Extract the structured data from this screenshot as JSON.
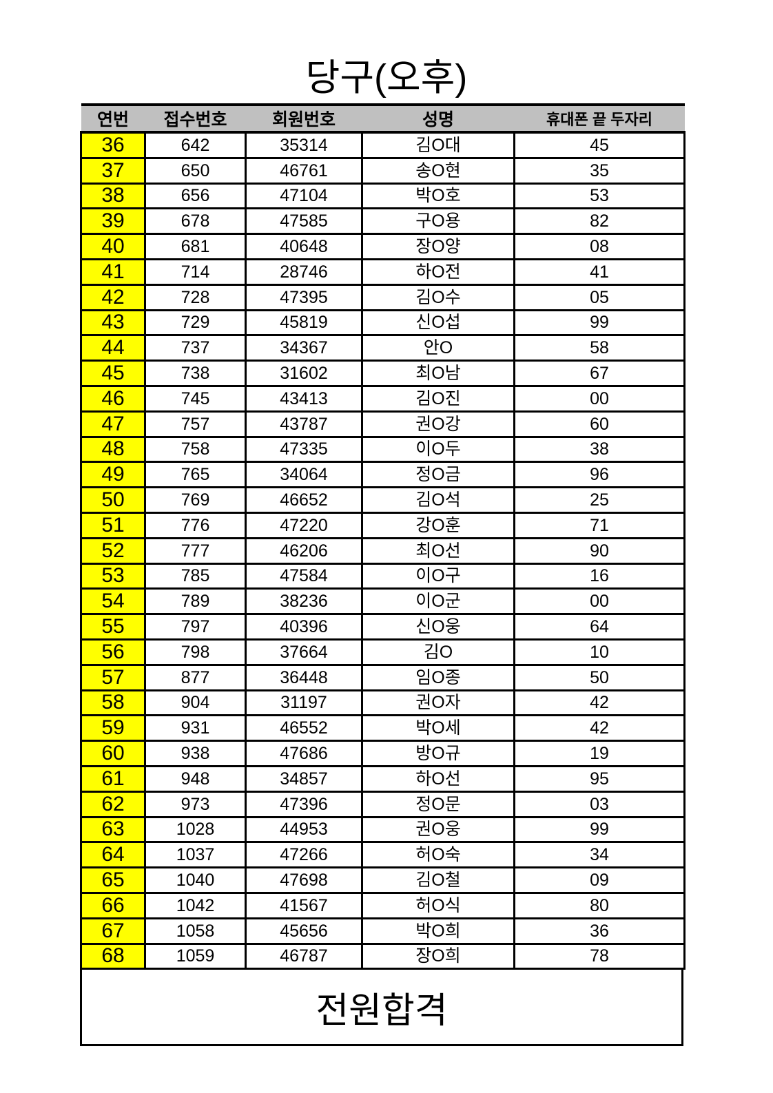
{
  "title": "당구(오후)",
  "columns": [
    "연번",
    "접수번호",
    "회원번호",
    "성명",
    "휴대폰 끝 두자리"
  ],
  "rows": [
    [
      "36",
      "642",
      "35314",
      "김O대",
      "45"
    ],
    [
      "37",
      "650",
      "46761",
      "송O현",
      "35"
    ],
    [
      "38",
      "656",
      "47104",
      "박O호",
      "53"
    ],
    [
      "39",
      "678",
      "47585",
      "구O용",
      "82"
    ],
    [
      "40",
      "681",
      "40648",
      "장O양",
      "08"
    ],
    [
      "41",
      "714",
      "28746",
      "하O전",
      "41"
    ],
    [
      "42",
      "728",
      "47395",
      "김O수",
      "05"
    ],
    [
      "43",
      "729",
      "45819",
      "신O섭",
      "99"
    ],
    [
      "44",
      "737",
      "34367",
      "안O",
      "58"
    ],
    [
      "45",
      "738",
      "31602",
      "최O남",
      "67"
    ],
    [
      "46",
      "745",
      "43413",
      "김O진",
      "00"
    ],
    [
      "47",
      "757",
      "43787",
      "권O강",
      "60"
    ],
    [
      "48",
      "758",
      "47335",
      "이O두",
      "38"
    ],
    [
      "49",
      "765",
      "34064",
      "정O금",
      "96"
    ],
    [
      "50",
      "769",
      "46652",
      "김O석",
      "25"
    ],
    [
      "51",
      "776",
      "47220",
      "강O훈",
      "71"
    ],
    [
      "52",
      "777",
      "46206",
      "최O선",
      "90"
    ],
    [
      "53",
      "785",
      "47584",
      "이O구",
      "16"
    ],
    [
      "54",
      "789",
      "38236",
      "이O군",
      "00"
    ],
    [
      "55",
      "797",
      "40396",
      "신O웅",
      "64"
    ],
    [
      "56",
      "798",
      "37664",
      "김O",
      "10"
    ],
    [
      "57",
      "877",
      "36448",
      "임O종",
      "50"
    ],
    [
      "58",
      "904",
      "31197",
      "권O자",
      "42"
    ],
    [
      "59",
      "931",
      "46552",
      "박O세",
      "42"
    ],
    [
      "60",
      "938",
      "47686",
      "방O규",
      "19"
    ],
    [
      "61",
      "948",
      "34857",
      "하O선",
      "95"
    ],
    [
      "62",
      "973",
      "47396",
      "정O문",
      "03"
    ],
    [
      "63",
      "1028",
      "44953",
      "권O웅",
      "99"
    ],
    [
      "64",
      "1037",
      "47266",
      "허O숙",
      "34"
    ],
    [
      "65",
      "1040",
      "47698",
      "김O철",
      "09"
    ],
    [
      "66",
      "1042",
      "41567",
      "허O식",
      "80"
    ],
    [
      "67",
      "1058",
      "45656",
      "박O희",
      "36"
    ],
    [
      "68",
      "1059",
      "46787",
      "장O희",
      "78"
    ]
  ],
  "footer": "전원합격",
  "colors": {
    "number_highlight": "#ffff00",
    "header_bg": "#c0c0c0"
  }
}
